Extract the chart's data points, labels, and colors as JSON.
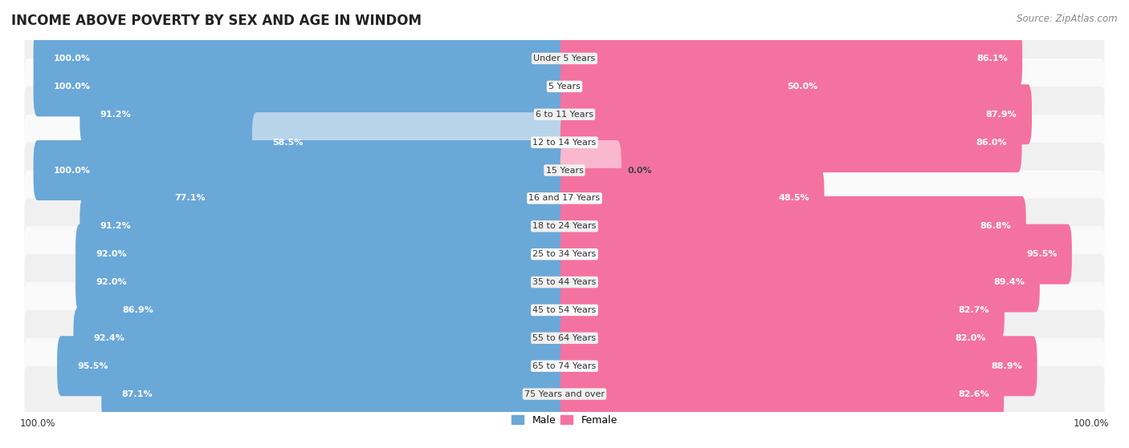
{
  "title": "INCOME ABOVE POVERTY BY SEX AND AGE IN WINDOM",
  "source": "Source: ZipAtlas.com",
  "categories": [
    "Under 5 Years",
    "5 Years",
    "6 to 11 Years",
    "12 to 14 Years",
    "15 Years",
    "16 and 17 Years",
    "18 to 24 Years",
    "25 to 34 Years",
    "35 to 44 Years",
    "45 to 54 Years",
    "55 to 64 Years",
    "65 to 74 Years",
    "75 Years and over"
  ],
  "male": [
    100.0,
    100.0,
    91.2,
    58.5,
    100.0,
    77.1,
    91.2,
    92.0,
    92.0,
    86.9,
    92.4,
    95.5,
    87.1
  ],
  "female": [
    86.1,
    50.0,
    87.9,
    86.0,
    0.0,
    48.5,
    86.8,
    95.5,
    89.4,
    82.7,
    82.0,
    88.9,
    82.6
  ],
  "male_color": "#6aa8d8",
  "male_color_light": "#b8d4eb",
  "female_color": "#f472a0",
  "female_color_light": "#f9b8ce",
  "row_bg_even": "#f0f0f0",
  "row_bg_odd": "#fafafa",
  "bg_color": "#ffffff",
  "axis_max": 100.0,
  "legend_male": "Male",
  "legend_female": "Female",
  "title_fontsize": 12,
  "source_fontsize": 8.5,
  "label_fontsize": 8,
  "category_fontsize": 8
}
